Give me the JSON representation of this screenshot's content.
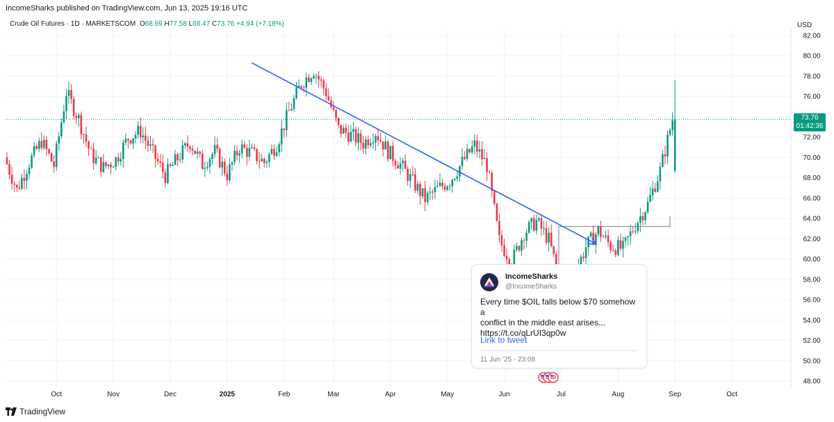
{
  "header": {
    "published": "IncomeSharks published on TradingView.com, Jun 13, 2025 19:16 UTC"
  },
  "symbol": {
    "name": "Crude Oil Futures · 1D · MARKETSCOM",
    "o_key": "O",
    "o": "68.69",
    "h_key": "H",
    "h": "77.58",
    "l_key": "L",
    "l": "68.47",
    "c_key": "C",
    "c": "73.76",
    "change": "+4.94 (+7.18%)"
  },
  "currency": "USD",
  "price_tag": {
    "price": "73.76",
    "countdown": "01:42:36"
  },
  "tweet": {
    "name": "IncomeSharks",
    "handle": "@IncomeSharks",
    "text": "Every time $OIL falls below $70 somehow a\nconflict in the middle east arises...\nhttps://t.co/qLrUI3qp0w",
    "link_label": "Link to tweet",
    "date": "11 Jun '25 · 23:08"
  },
  "footer": {
    "brand": "TradingView"
  },
  "colors": {
    "up": "#089981",
    "down": "#f23645",
    "trendline": "#2962ff",
    "grid": "#f0f3fa"
  },
  "chart_data": {
    "type": "candlestick",
    "y_axis": {
      "min": 48,
      "max": 82,
      "ticks": [
        "48.00",
        "50.00",
        "52.00",
        "54.00",
        "56.00",
        "58.00",
        "60.00",
        "62.00",
        "64.00",
        "66.00",
        "68.00",
        "70.00",
        "72.00",
        "74.00",
        "76.00",
        "78.00",
        "80.00",
        "82.00"
      ],
      "side": "right"
    },
    "x_axis": {
      "ticks": [
        "Oct",
        "Nov",
        "Dec",
        "2025",
        "Feb",
        "Mar",
        "Apr",
        "May",
        "Jun",
        "Jul",
        "Aug",
        "Sep",
        "Oct"
      ],
      "tick_day_index": [
        20,
        43,
        66,
        89,
        112,
        132,
        155,
        178,
        201,
        224,
        247,
        270,
        293
      ]
    },
    "grid": true,
    "current_price": 73.76,
    "last_candle": {
      "open": 68.69,
      "high": 77.58,
      "low": 68.47,
      "close": 73.76
    },
    "trendline": {
      "start": {
        "day_index": 99,
        "price": 79.3
      },
      "end": {
        "day_index": 238,
        "price": 61.5
      },
      "arrow": true
    },
    "closes_weekly": [
      70.0,
      66.8,
      69.5,
      71.6,
      69.2,
      76.4,
      73.8,
      70.2,
      69.0,
      69.8,
      71.9,
      72.6,
      70.4,
      68.2,
      69.9,
      71.5,
      69.3,
      70.6,
      68.3,
      71.0,
      70.4,
      69.5,
      71.3,
      74.5,
      77.3,
      78.6,
      76.4,
      72.8,
      72.2,
      71.4,
      72.5,
      70.6,
      69.3,
      67.6,
      65.9,
      66.9,
      67.7,
      69.5,
      71.2,
      69.2,
      61.8,
      59.7,
      62.6,
      63.7,
      61.9,
      57.4,
      58.3,
      61.2,
      62.8,
      61.3,
      61.0,
      63.4,
      65.4,
      68.7,
      73.76
    ]
  }
}
